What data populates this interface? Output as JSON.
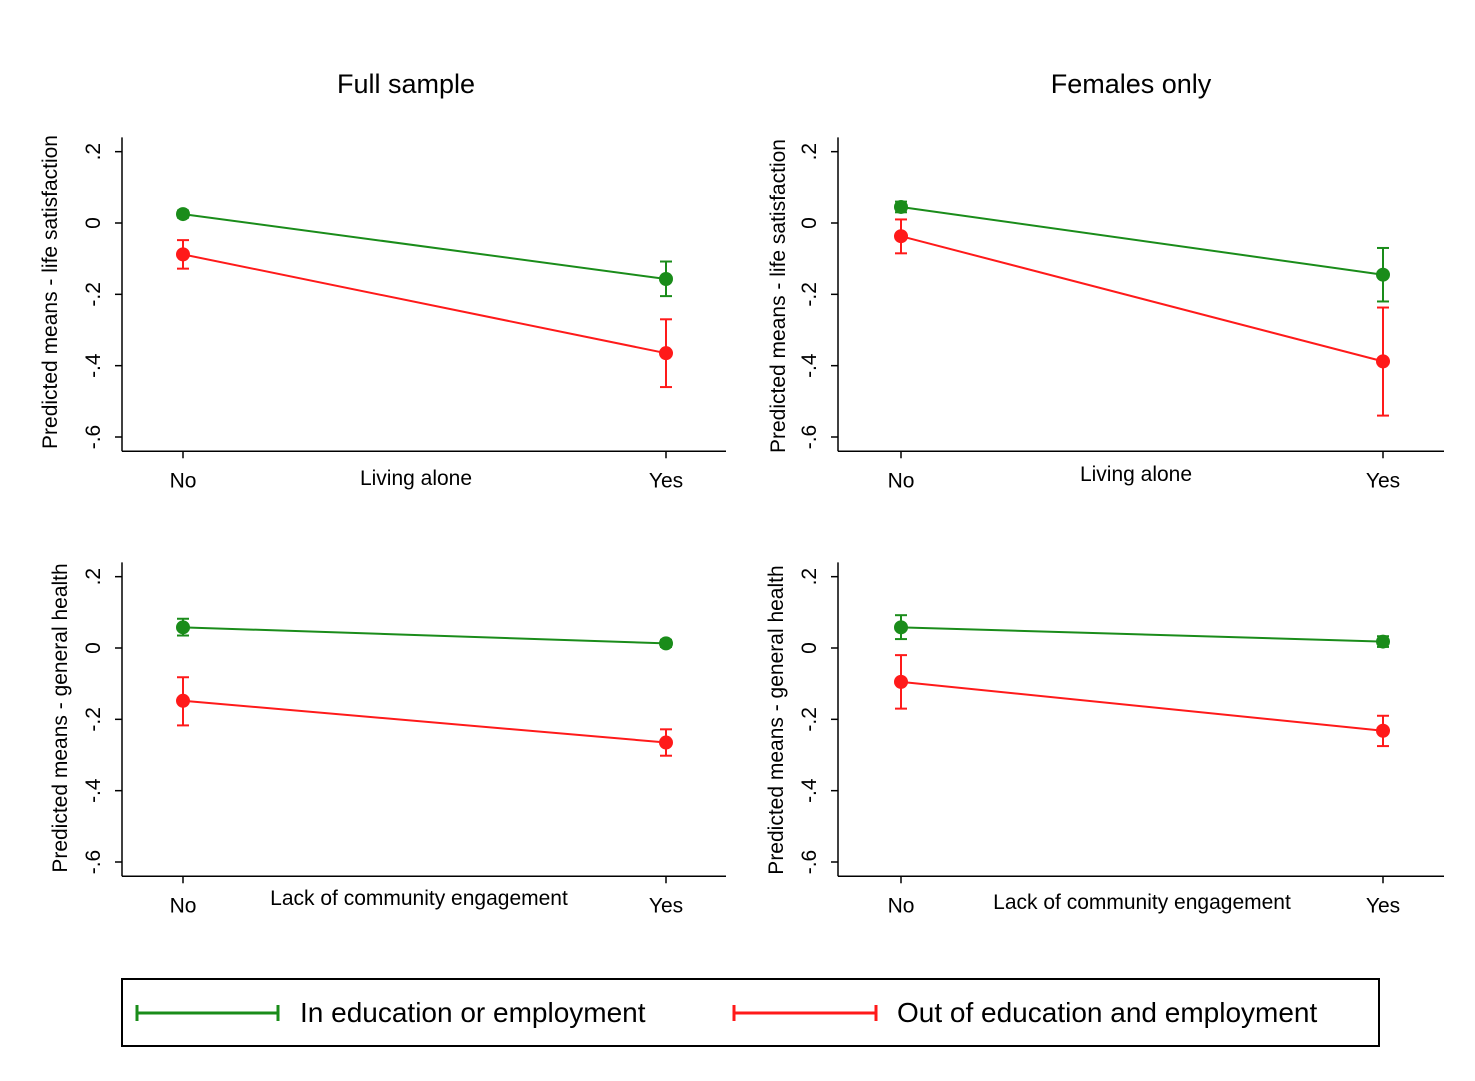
{
  "legend": {
    "items": [
      {
        "label": "In education or employment",
        "color": "#1a8c1a"
      },
      {
        "label": "Out of education and employment",
        "color": "#ff1a1a"
      }
    ]
  },
  "chart_data": [
    {
      "type": "line",
      "title": "Full sample",
      "xlabel": "Living alone",
      "ylabel": "Predicted means - life satisfaction",
      "categories": [
        "No",
        "Yes"
      ],
      "yticks": [
        0.2,
        0,
        -0.2,
        -0.4,
        -0.6
      ],
      "ytick_labels": [
        ".2",
        "0",
        "-.2",
        "-.4",
        "-.6"
      ],
      "ylim": [
        -0.64,
        0.24
      ],
      "series": [
        {
          "name": "In education or employment",
          "color": "#1a8c1a",
          "values": [
            0.025,
            -0.157
          ],
          "ci_low": [
            0.015,
            -0.205
          ],
          "ci_high": [
            0.035,
            -0.108
          ]
        },
        {
          "name": "Out of education and employment",
          "color": "#ff1a1a",
          "values": [
            -0.088,
            -0.365
          ],
          "ci_low": [
            -0.128,
            -0.46
          ],
          "ci_high": [
            -0.048,
            -0.27
          ]
        }
      ]
    },
    {
      "type": "line",
      "title": "Females only",
      "xlabel": "Living alone",
      "ylabel": "Predicted means - life satisfaction",
      "categories": [
        "No",
        "Yes"
      ],
      "yticks": [
        0.2,
        0,
        -0.2,
        -0.4,
        -0.6
      ],
      "ytick_labels": [
        ".2",
        "0",
        "-.2",
        "-.4",
        "-.6"
      ],
      "ylim": [
        -0.64,
        0.24
      ],
      "series": [
        {
          "name": "In education or employment",
          "color": "#1a8c1a",
          "values": [
            0.045,
            -0.145
          ],
          "ci_low": [
            0.03,
            -0.22
          ],
          "ci_high": [
            0.06,
            -0.07
          ]
        },
        {
          "name": "Out of education and employment",
          "color": "#ff1a1a",
          "values": [
            -0.037,
            -0.388
          ],
          "ci_low": [
            -0.085,
            -0.54
          ],
          "ci_high": [
            0.01,
            -0.237
          ]
        }
      ]
    },
    {
      "type": "line",
      "title": "",
      "xlabel": "Lack of community engagement",
      "ylabel": "Predicted means - general health",
      "categories": [
        "No",
        "Yes"
      ],
      "yticks": [
        0.2,
        0,
        -0.2,
        -0.4,
        -0.6
      ],
      "ytick_labels": [
        ".2",
        "0",
        "-.2",
        "-.4",
        "-.6"
      ],
      "ylim": [
        -0.64,
        0.24
      ],
      "series": [
        {
          "name": "In education or employment",
          "color": "#1a8c1a",
          "values": [
            0.058,
            0.013
          ],
          "ci_low": [
            0.035,
            0.003
          ],
          "ci_high": [
            0.082,
            0.023
          ]
        },
        {
          "name": "Out of education and employment",
          "color": "#ff1a1a",
          "values": [
            -0.148,
            -0.265
          ],
          "ci_low": [
            -0.217,
            -0.302
          ],
          "ci_high": [
            -0.082,
            -0.228
          ]
        }
      ]
    },
    {
      "type": "line",
      "title": "",
      "xlabel": "Lack of community engagement",
      "ylabel": "Predicted means - general health",
      "categories": [
        "No",
        "Yes"
      ],
      "yticks": [
        0.2,
        0,
        -0.2,
        -0.4,
        -0.6
      ],
      "ytick_labels": [
        ".2",
        "0",
        "-.2",
        "-.4",
        "-.6"
      ],
      "ylim": [
        -0.64,
        0.24
      ],
      "series": [
        {
          "name": "In education or employment",
          "color": "#1a8c1a",
          "values": [
            0.058,
            0.018
          ],
          "ci_low": [
            0.025,
            0.003
          ],
          "ci_high": [
            0.092,
            0.033
          ]
        },
        {
          "name": "Out of education and employment",
          "color": "#ff1a1a",
          "values": [
            -0.095,
            -0.232
          ],
          "ci_low": [
            -0.17,
            -0.275
          ],
          "ci_high": [
            -0.02,
            -0.19
          ]
        }
      ]
    }
  ]
}
